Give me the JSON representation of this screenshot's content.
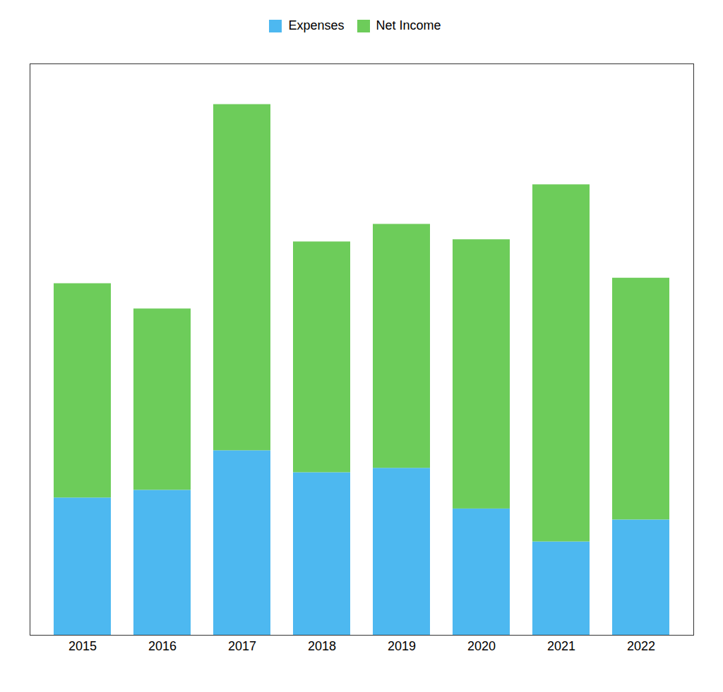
{
  "chart_data": {
    "type": "bar",
    "stacked": true,
    "categories": [
      "2015",
      "2016",
      "2017",
      "2018",
      "2019",
      "2020",
      "2021",
      "2022"
    ],
    "series": [
      {
        "name": "Expenses",
        "color": "#4db8f0",
        "values": [
          125,
          132,
          168,
          148,
          152,
          115,
          85,
          105
        ]
      },
      {
        "name": "Net Income",
        "color": "#6dcc5a",
        "values": [
          195,
          165,
          315,
          210,
          222,
          245,
          325,
          220
        ]
      }
    ],
    "ylim": [
      0,
      520
    ],
    "yticks": [],
    "grid": false,
    "tick_labels": "x",
    "legend": "top"
  }
}
